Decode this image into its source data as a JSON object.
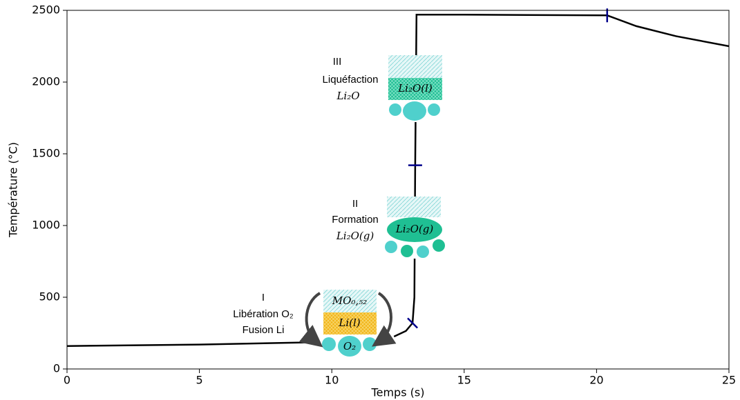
{
  "chart_data": {
    "type": "line",
    "x_label": "Temps (s)",
    "y_label": "Température (°C)",
    "xlim": [
      0,
      25
    ],
    "ylim": [
      0,
      2500
    ],
    "xticks": [
      0,
      5,
      10,
      15,
      20,
      25
    ],
    "yticks": [
      0,
      500,
      1000,
      1500,
      2000,
      2500
    ],
    "series": [
      {
        "color": "#000000",
        "x": [
          0,
          5,
          9.05,
          10.7,
          12.35,
          12.8,
          13.05,
          13.12,
          13.15,
          13.2,
          15,
          20.4,
          21.5,
          23,
          25
        ],
        "values": [
          160,
          170,
          185,
          null,
          226,
          265,
          320,
          500,
          1420,
          2470,
          2470,
          2465,
          2390,
          2320,
          2250
        ]
      }
    ],
    "markers": {
      "color": "#00008b",
      "x": [
        13.05,
        13.15,
        20.4
      ],
      "values": [
        320,
        1420,
        2465
      ]
    },
    "annotations": [
      [
        "III",
        "Liquéfaction",
        "Li₂O"
      ],
      [
        "II",
        "Formation",
        "Li₂O(g)"
      ],
      [
        "I",
        "Libération O₂",
        "Fusion Li"
      ]
    ],
    "illustration_labels": [
      "Li₂O(l)",
      "Li₂O(g)",
      "MO₀,₅₂",
      "Li(l)",
      "O₂"
    ]
  }
}
